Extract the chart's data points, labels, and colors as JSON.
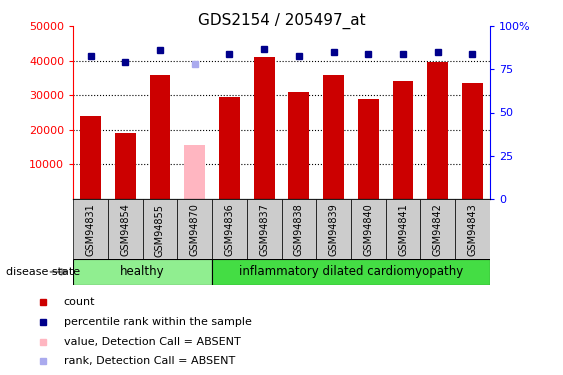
{
  "title": "GDS2154 / 205497_at",
  "samples": [
    "GSM94831",
    "GSM94854",
    "GSM94855",
    "GSM94870",
    "GSM94836",
    "GSM94837",
    "GSM94838",
    "GSM94839",
    "GSM94840",
    "GSM94841",
    "GSM94842",
    "GSM94843"
  ],
  "counts": [
    24000,
    19000,
    36000,
    15500,
    29500,
    41000,
    31000,
    36000,
    29000,
    34000,
    39500,
    33500
  ],
  "percentile_ranks": [
    83,
    79,
    86,
    78,
    84,
    87,
    83,
    85,
    84,
    84,
    85,
    84
  ],
  "absent": [
    false,
    false,
    false,
    true,
    false,
    false,
    false,
    false,
    false,
    false,
    false,
    false
  ],
  "healthy_count": 4,
  "groups": [
    "healthy",
    "inflammatory dilated cardiomyopathy"
  ],
  "bar_color_normal": "#cc0000",
  "bar_color_absent": "#ffb6c1",
  "dot_color_normal": "#00008b",
  "dot_color_absent": "#aaaaee",
  "ylim_left": [
    0,
    50000
  ],
  "ylim_right": [
    0,
    100
  ],
  "yticks_left": [
    10000,
    20000,
    30000,
    40000,
    50000
  ],
  "ytick_labels_left": [
    "10000",
    "20000",
    "30000",
    "40000",
    "50000"
  ],
  "yticks_right": [
    0,
    25,
    50,
    75,
    100
  ],
  "ytick_labels_right": [
    "0",
    "25",
    "50",
    "75",
    "100%"
  ],
  "grid_values": [
    10000,
    20000,
    30000,
    40000
  ],
  "disease_state_label": "disease state",
  "legend_items": [
    {
      "label": "count",
      "color": "#cc0000"
    },
    {
      "label": "percentile rank within the sample",
      "color": "#00008b"
    },
    {
      "label": "value, Detection Call = ABSENT",
      "color": "#ffb6c1"
    },
    {
      "label": "rank, Detection Call = ABSENT",
      "color": "#aaaaee"
    }
  ],
  "healthy_color": "#90ee90",
  "inflam_color": "#44dd44"
}
